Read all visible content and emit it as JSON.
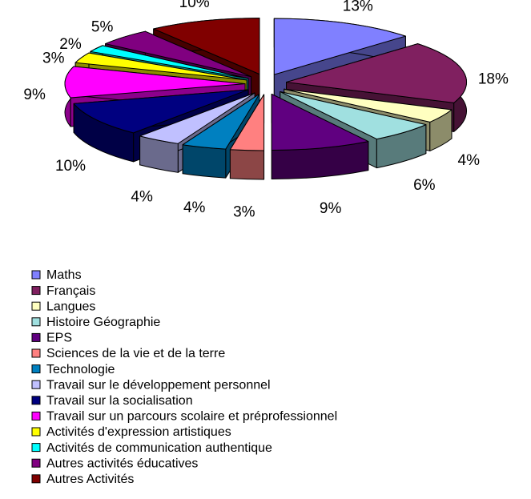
{
  "chart_data": {
    "type": "pie",
    "categories": [
      "Maths",
      "Français",
      "Langues",
      "Histoire Géographie",
      "EPS",
      "Sciences de la vie et de la terre",
      "Technologie",
      "Travail sur le développement personnel",
      "Travail sur la socialisation",
      "Travail sur un parcours scolaire et préprofessionnel",
      "Activités d'expression artistiques",
      "Activités de communication authentique",
      "Autres activités éducatives",
      "Autres Activités"
    ],
    "values": [
      13,
      18,
      4,
      6,
      9,
      3,
      4,
      4,
      10,
      9,
      3,
      2,
      5,
      10
    ],
    "value_labels": [
      "13%",
      "18%",
      "4%",
      "6%",
      "9%",
      "3%",
      "4%",
      "4%",
      "10%",
      "9%",
      "3%",
      "2%",
      "5%",
      "10%"
    ],
    "colors": [
      "#8080ff",
      "#802060",
      "#ffffc0",
      "#a0e0e0",
      "#600080",
      "#ff8080",
      "#0080c0",
      "#c0c0ff",
      "#000080",
      "#ff00ff",
      "#ffff00",
      "#00ffff",
      "#800080",
      "#800000"
    ],
    "legend": "bottom-left"
  }
}
